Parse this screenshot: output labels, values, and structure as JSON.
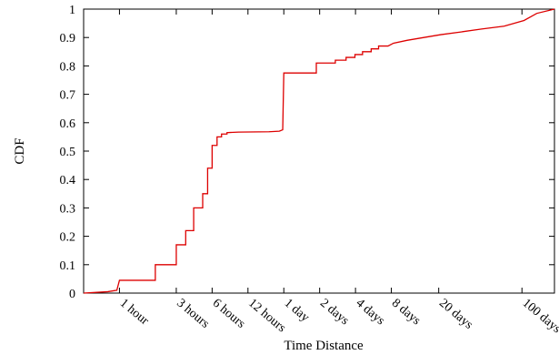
{
  "chart_data": {
    "type": "line",
    "title": "",
    "xlabel": "Time Distance",
    "ylabel": "CDF",
    "xscale": "log",
    "xunit": "hours",
    "ylim": [
      0,
      1
    ],
    "xlim": [
      0.5,
      4500
    ],
    "grid": false,
    "legend": "none",
    "yticks": [
      0,
      0.1,
      0.2,
      0.3,
      0.4,
      0.5,
      0.6,
      0.7,
      0.8,
      0.9,
      1
    ],
    "ytick_labels": [
      "0",
      "0.1",
      "0.2",
      "0.3",
      "0.4",
      "0.5",
      "0.6",
      "0.7",
      "0.8",
      "0.9",
      "1"
    ],
    "xtick_labels": [
      {
        "label": "1 hour",
        "value": 1
      },
      {
        "label": "3 hours",
        "value": 3
      },
      {
        "label": "6 hours",
        "value": 6
      },
      {
        "label": "12 hours",
        "value": 12
      },
      {
        "label": "1 day",
        "value": 24
      },
      {
        "label": "2 days",
        "value": 48
      },
      {
        "label": "4 days",
        "value": 96
      },
      {
        "label": "8 days",
        "value": 192
      },
      {
        "label": "20 days",
        "value": 480
      },
      {
        "label": "100 days",
        "value": 2400
      }
    ],
    "series": [
      {
        "color": "#dd0000",
        "points": [
          [
            0.5,
            0.0
          ],
          [
            0.8,
            0.005
          ],
          [
            0.95,
            0.01
          ],
          [
            1.0,
            0.045
          ],
          [
            2.0,
            0.045
          ],
          [
            2.0,
            0.1
          ],
          [
            3.0,
            0.1
          ],
          [
            3.0,
            0.17
          ],
          [
            3.6,
            0.17
          ],
          [
            3.6,
            0.22
          ],
          [
            4.2,
            0.22
          ],
          [
            4.2,
            0.3
          ],
          [
            5.0,
            0.3
          ],
          [
            5.0,
            0.35
          ],
          [
            5.5,
            0.35
          ],
          [
            5.5,
            0.44
          ],
          [
            6.0,
            0.44
          ],
          [
            6.0,
            0.52
          ],
          [
            6.6,
            0.52
          ],
          [
            6.6,
            0.55
          ],
          [
            7.2,
            0.55
          ],
          [
            7.2,
            0.56
          ],
          [
            8.0,
            0.56
          ],
          [
            8.0,
            0.565
          ],
          [
            10.0,
            0.567
          ],
          [
            18.0,
            0.568
          ],
          [
            22.0,
            0.57
          ],
          [
            23.5,
            0.575
          ],
          [
            24.0,
            0.775
          ],
          [
            45.0,
            0.775
          ],
          [
            45.0,
            0.81
          ],
          [
            65.0,
            0.81
          ],
          [
            65.0,
            0.82
          ],
          [
            80.0,
            0.82
          ],
          [
            80.0,
            0.83
          ],
          [
            95.0,
            0.83
          ],
          [
            95.0,
            0.84
          ],
          [
            110.0,
            0.84
          ],
          [
            110.0,
            0.85
          ],
          [
            130.0,
            0.85
          ],
          [
            130.0,
            0.86
          ],
          [
            150.0,
            0.86
          ],
          [
            150.0,
            0.87
          ],
          [
            180.0,
            0.87
          ],
          [
            200.0,
            0.88
          ],
          [
            260.0,
            0.89
          ],
          [
            360.0,
            0.9
          ],
          [
            500.0,
            0.91
          ],
          [
            750.0,
            0.92
          ],
          [
            1100.0,
            0.93
          ],
          [
            1700.0,
            0.94
          ],
          [
            2500.0,
            0.96
          ],
          [
            3200.0,
            0.985
          ],
          [
            4500.0,
            1.0
          ]
        ]
      }
    ]
  }
}
